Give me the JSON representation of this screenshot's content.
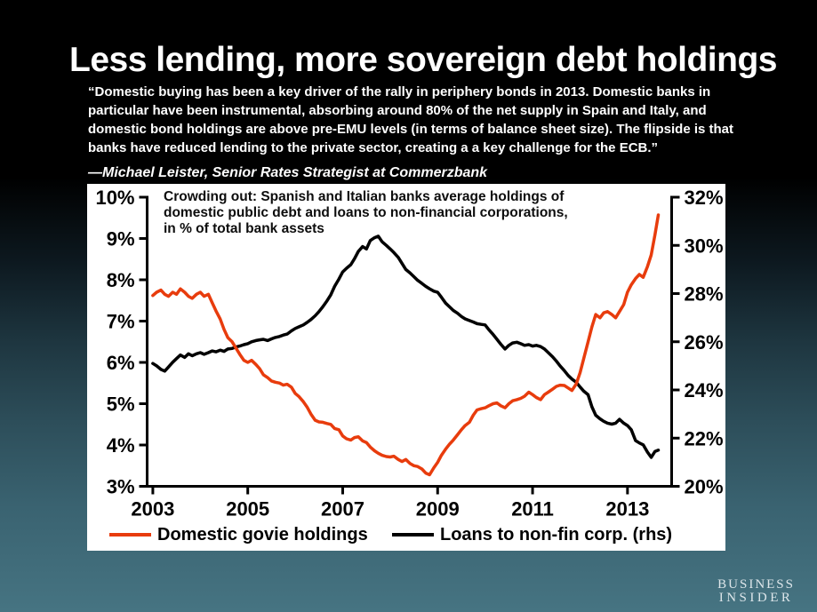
{
  "slide": {
    "title": "Less lending, more sovereign debt holdings",
    "quote": "“Domestic buying has been a key driver of the rally in periphery bonds in 2013. Domestic banks in particular have been instrumental, absorbing around 80% of the net supply in Spain and Italy, and domestic bond holdings are above pre-EMU levels (in terms of balance sheet size). The flipside is that banks have reduced lending to the private sector, creating a a key challenge for the ECB.”",
    "attribution": "—Michael Leister, Senior Rates Strategist at Commerzbank"
  },
  "logo": {
    "line1": "BUSINESS",
    "line2": "INSIDER"
  },
  "chart_data": {
    "type": "line",
    "title": "Crowding out: Spanish and Italian banks average holdings of\ndomestic public debt and loans to non-financial corporations,\nin % of total bank assets",
    "grid": false,
    "legend_position": "bottom",
    "x_domain": [
      2002.88,
      2013.93
    ],
    "x_ticks": [
      2003,
      2005,
      2007,
      2009,
      2011,
      2013
    ],
    "left_axis": {
      "lim": [
        3,
        10
      ],
      "ticks": [
        10,
        9,
        8,
        7,
        6,
        5,
        4,
        3
      ],
      "unit": "%"
    },
    "right_axis": {
      "lim": [
        20,
        32
      ],
      "ticks": [
        32,
        30,
        28,
        26,
        24,
        22,
        20
      ],
      "unit": "%"
    },
    "series": [
      {
        "name": "Domestic govie holdings",
        "axis": "left",
        "color": "#e83c0d",
        "x": [
          2003.0,
          2003.08,
          2003.17,
          2003.25,
          2003.33,
          2003.42,
          2003.5,
          2003.58,
          2003.67,
          2003.75,
          2003.83,
          2003.92,
          2004.0,
          2004.08,
          2004.17,
          2004.25,
          2004.33,
          2004.42,
          2004.5,
          2004.58,
          2004.67,
          2004.75,
          2004.83,
          2004.92,
          2005.0,
          2005.08,
          2005.17,
          2005.25,
          2005.33,
          2005.42,
          2005.5,
          2005.58,
          2005.67,
          2005.75,
          2005.83,
          2005.92,
          2006.0,
          2006.08,
          2006.17,
          2006.25,
          2006.33,
          2006.42,
          2006.5,
          2006.58,
          2006.67,
          2006.75,
          2006.83,
          2006.92,
          2007.0,
          2007.08,
          2007.17,
          2007.25,
          2007.33,
          2007.42,
          2007.5,
          2007.58,
          2007.67,
          2007.75,
          2007.83,
          2007.92,
          2008.0,
          2008.08,
          2008.17,
          2008.25,
          2008.33,
          2008.42,
          2008.5,
          2008.58,
          2008.67,
          2008.75,
          2008.83,
          2008.92,
          2009.0,
          2009.08,
          2009.17,
          2009.25,
          2009.33,
          2009.42,
          2009.5,
          2009.58,
          2009.67,
          2009.75,
          2009.83,
          2009.92,
          2010.0,
          2010.08,
          2010.17,
          2010.25,
          2010.33,
          2010.42,
          2010.5,
          2010.58,
          2010.67,
          2010.75,
          2010.83,
          2010.92,
          2011.0,
          2011.08,
          2011.17,
          2011.25,
          2011.33,
          2011.42,
          2011.5,
          2011.58,
          2011.67,
          2011.75,
          2011.83,
          2011.92,
          2012.0,
          2012.08,
          2012.17,
          2012.25,
          2012.33,
          2012.42,
          2012.5,
          2012.58,
          2012.67,
          2012.75,
          2012.83,
          2012.92,
          2013.0,
          2013.08,
          2013.17,
          2013.25,
          2013.33,
          2013.42,
          2013.5,
          2013.58,
          2013.65
        ],
        "values": [
          7.62,
          7.7,
          7.75,
          7.65,
          7.6,
          7.7,
          7.65,
          7.78,
          7.7,
          7.6,
          7.55,
          7.65,
          7.7,
          7.6,
          7.65,
          7.45,
          7.25,
          7.05,
          6.8,
          6.6,
          6.5,
          6.35,
          6.2,
          6.05,
          6.0,
          6.05,
          5.95,
          5.85,
          5.7,
          5.63,
          5.55,
          5.52,
          5.5,
          5.45,
          5.47,
          5.4,
          5.25,
          5.17,
          5.05,
          4.92,
          4.75,
          4.6,
          4.56,
          4.55,
          4.52,
          4.5,
          4.4,
          4.37,
          4.22,
          4.15,
          4.12,
          4.18,
          4.2,
          4.1,
          4.06,
          3.95,
          3.86,
          3.8,
          3.75,
          3.72,
          3.71,
          3.73,
          3.65,
          3.6,
          3.65,
          3.55,
          3.5,
          3.48,
          3.42,
          3.32,
          3.28,
          3.45,
          3.58,
          3.75,
          3.9,
          4.02,
          4.12,
          4.25,
          4.37,
          4.47,
          4.55,
          4.72,
          4.85,
          4.88,
          4.9,
          4.95,
          5.0,
          5.02,
          4.95,
          4.9,
          5.0,
          5.07,
          5.1,
          5.13,
          5.18,
          5.28,
          5.22,
          5.15,
          5.1,
          5.22,
          5.28,
          5.35,
          5.42,
          5.45,
          5.44,
          5.38,
          5.32,
          5.48,
          5.75,
          6.1,
          6.5,
          6.86,
          7.16,
          7.08,
          7.2,
          7.23,
          7.16,
          7.08,
          7.23,
          7.4,
          7.7,
          7.88,
          8.03,
          8.13,
          8.06,
          8.32,
          8.6,
          9.1,
          9.57
        ]
      },
      {
        "name": "Loans to non-fin corp. (rhs)",
        "axis": "right",
        "color": "#000000",
        "x": [
          2003.0,
          2003.08,
          2003.17,
          2003.25,
          2003.33,
          2003.42,
          2003.5,
          2003.58,
          2003.67,
          2003.75,
          2003.83,
          2003.92,
          2004.0,
          2004.08,
          2004.17,
          2004.25,
          2004.33,
          2004.42,
          2004.5,
          2004.58,
          2004.67,
          2004.75,
          2004.83,
          2004.92,
          2005.0,
          2005.08,
          2005.17,
          2005.25,
          2005.33,
          2005.42,
          2005.5,
          2005.58,
          2005.67,
          2005.75,
          2005.83,
          2005.92,
          2006.0,
          2006.08,
          2006.17,
          2006.25,
          2006.33,
          2006.42,
          2006.5,
          2006.58,
          2006.67,
          2006.75,
          2006.83,
          2006.92,
          2007.0,
          2007.08,
          2007.17,
          2007.25,
          2007.33,
          2007.42,
          2007.5,
          2007.58,
          2007.67,
          2007.75,
          2007.83,
          2007.92,
          2008.0,
          2008.08,
          2008.17,
          2008.25,
          2008.33,
          2008.42,
          2008.5,
          2008.58,
          2008.67,
          2008.75,
          2008.83,
          2008.92,
          2009.0,
          2009.08,
          2009.17,
          2009.25,
          2009.33,
          2009.42,
          2009.5,
          2009.58,
          2009.67,
          2009.75,
          2009.83,
          2009.92,
          2010.0,
          2010.08,
          2010.17,
          2010.25,
          2010.33,
          2010.42,
          2010.5,
          2010.58,
          2010.67,
          2010.75,
          2010.83,
          2010.92,
          2011.0,
          2011.08,
          2011.17,
          2011.25,
          2011.33,
          2011.42,
          2011.5,
          2011.58,
          2011.67,
          2011.75,
          2011.83,
          2011.92,
          2012.0,
          2012.08,
          2012.17,
          2012.25,
          2012.33,
          2012.42,
          2012.5,
          2012.58,
          2012.67,
          2012.75,
          2012.83,
          2012.92,
          2013.0,
          2013.08,
          2013.17,
          2013.25,
          2013.33,
          2013.42,
          2013.5,
          2013.58,
          2013.65
        ],
        "values": [
          25.1,
          25.0,
          24.85,
          24.78,
          24.95,
          25.15,
          25.3,
          25.45,
          25.35,
          25.5,
          25.42,
          25.5,
          25.55,
          25.48,
          25.55,
          25.62,
          25.58,
          25.65,
          25.6,
          25.7,
          25.72,
          25.78,
          25.82,
          25.88,
          25.92,
          26.0,
          26.05,
          26.08,
          26.1,
          26.05,
          26.12,
          26.18,
          26.22,
          26.28,
          26.32,
          26.45,
          26.55,
          26.62,
          26.7,
          26.8,
          26.92,
          27.08,
          27.25,
          27.45,
          27.7,
          27.95,
          28.3,
          28.6,
          28.9,
          29.05,
          29.2,
          29.45,
          29.75,
          29.95,
          29.85,
          30.2,
          30.32,
          30.38,
          30.15,
          30.0,
          29.85,
          29.7,
          29.5,
          29.25,
          29.0,
          28.85,
          28.7,
          28.55,
          28.42,
          28.3,
          28.2,
          28.1,
          28.05,
          27.85,
          27.6,
          27.45,
          27.3,
          27.18,
          27.05,
          26.95,
          26.88,
          26.82,
          26.75,
          26.72,
          26.7,
          26.5,
          26.3,
          26.1,
          25.9,
          25.7,
          25.85,
          25.95,
          25.98,
          25.92,
          25.85,
          25.88,
          25.82,
          25.85,
          25.8,
          25.7,
          25.55,
          25.38,
          25.2,
          25.0,
          24.8,
          24.6,
          24.45,
          24.32,
          24.12,
          23.95,
          23.8,
          23.3,
          22.95,
          22.8,
          22.7,
          22.62,
          22.58,
          22.62,
          22.78,
          22.62,
          22.52,
          22.35,
          21.9,
          21.8,
          21.72,
          21.42,
          21.2,
          21.45,
          21.5
        ]
      }
    ]
  }
}
